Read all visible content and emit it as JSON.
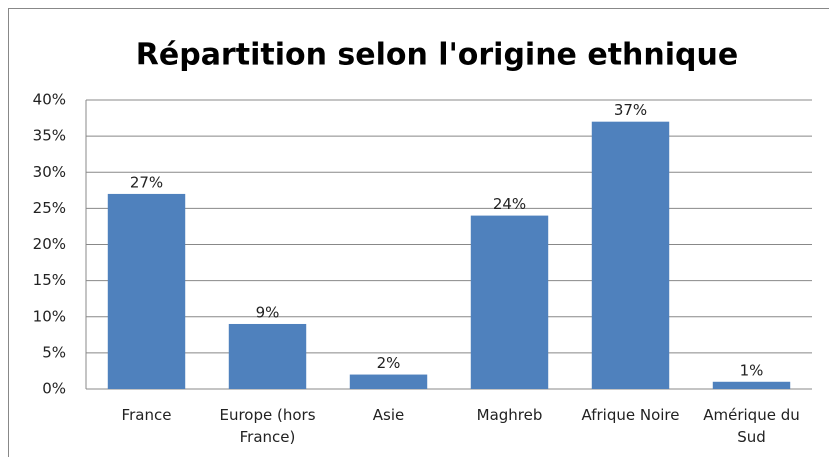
{
  "chart_data": {
    "type": "bar",
    "title": "Répartition selon l'origine ethnique",
    "categories": [
      "France",
      "Europe (hors France)",
      "Asie",
      "Maghreb",
      "Afrique Noire",
      "Amérique du Sud"
    ],
    "values": [
      27,
      9,
      2,
      24,
      37,
      1
    ],
    "value_labels": [
      "27%",
      "9%",
      "2%",
      "24%",
      "37%",
      "1%"
    ],
    "color": "#4f81bd",
    "ylim": [
      0,
      40
    ],
    "yticks": [
      {
        "value": 0,
        "label": "0%"
      },
      {
        "value": 5,
        "label": "5%"
      },
      {
        "value": 10,
        "label": "10%"
      },
      {
        "value": 15,
        "label": "15%"
      },
      {
        "value": 20,
        "label": "20%"
      },
      {
        "value": 25,
        "label": "25%"
      },
      {
        "value": 30,
        "label": "30%"
      },
      {
        "value": 35,
        "label": "35%"
      },
      {
        "value": 40,
        "label": "40%"
      }
    ],
    "grid": true
  }
}
